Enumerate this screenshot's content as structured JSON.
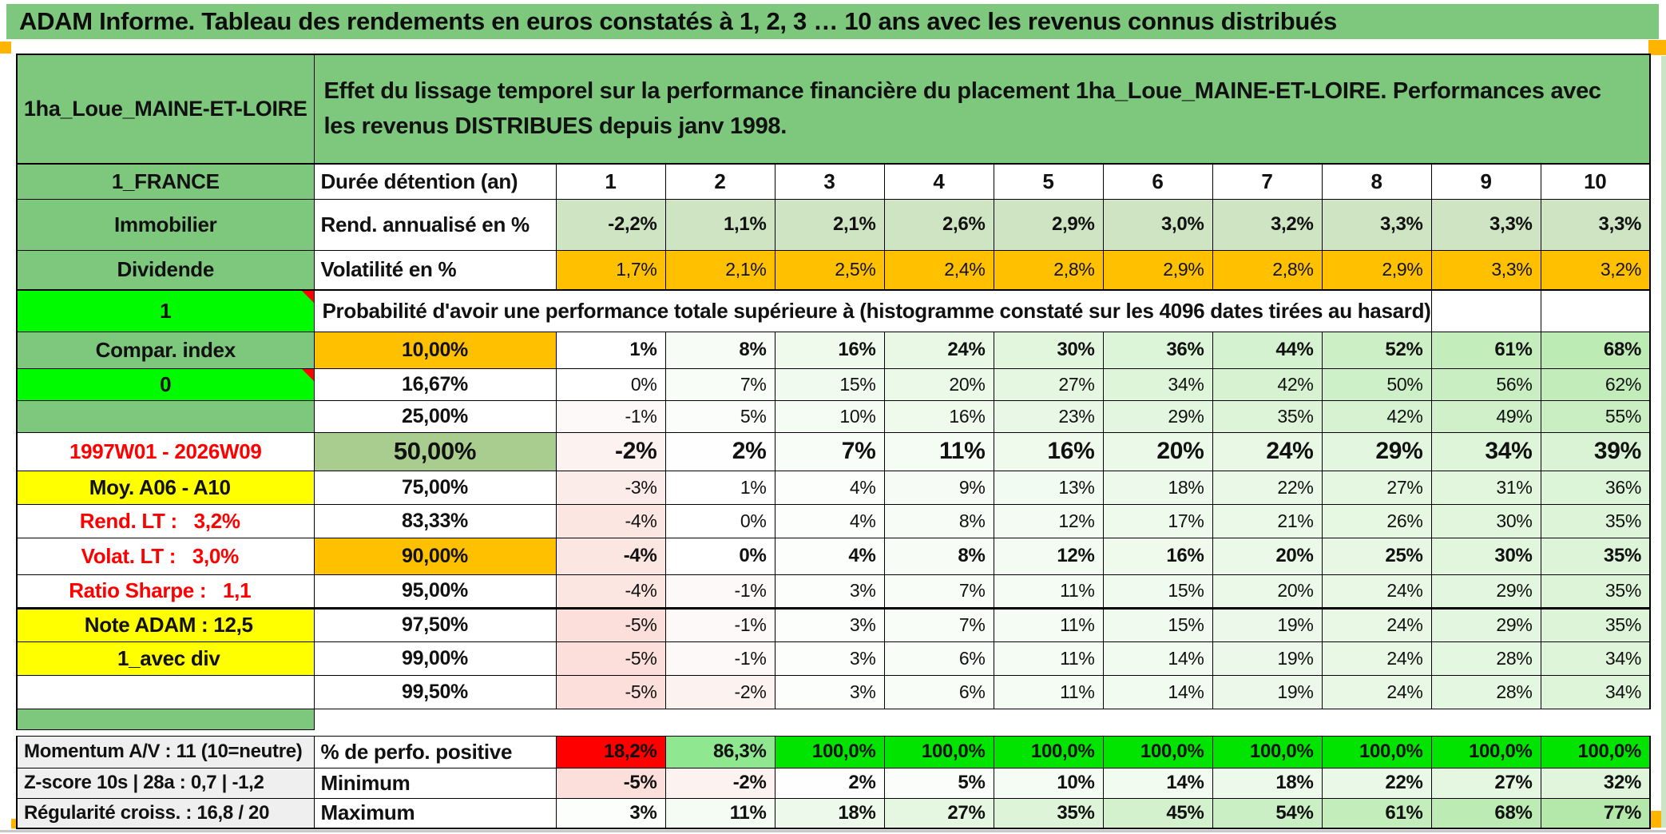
{
  "banner": {
    "text": "ADAM Informe. Tableau des rendements en euros constatés à 1, 2, 3 … 10 ans avec les revenus connus distribués"
  },
  "header": {
    "placement": "1ha_Loue_MAINE-ET-LOIRE",
    "description": "Effet du lissage temporel sur la performance financière du placement 1ha_Loue_MAINE-ET-LOIRE. Performances avec les revenus DISTRIBUES depuis janv 1998."
  },
  "columns": [
    "1",
    "2",
    "3",
    "4",
    "5",
    "6",
    "7",
    "8",
    "9",
    "10"
  ],
  "top_rows": {
    "duree": {
      "a": "1_FRANCE",
      "b": "Durée détention (an)"
    },
    "rend": {
      "a": "Immobilier",
      "b": "Rend. annualisé en %",
      "values": [
        "-2,2%",
        "1,1%",
        "2,1%",
        "2,6%",
        "2,9%",
        "3,0%",
        "3,2%",
        "3,3%",
        "3,3%",
        "3,3%"
      ]
    },
    "volat": {
      "a": "Dividende",
      "b": "Volatilité en %",
      "values": [
        "1,7%",
        "2,1%",
        "2,5%",
        "2,4%",
        "2,8%",
        "2,9%",
        "2,8%",
        "2,9%",
        "3,3%",
        "3,2%"
      ]
    }
  },
  "probability_row": {
    "a": "1",
    "text": "Probabilité d'avoir une performance totale supérieure à (histogramme constaté sur les 4096 dates tirées au hasard)"
  },
  "histogram_rows": [
    {
      "a": "Compar. index",
      "a_cls": "bg-hgreen",
      "b": "10,00%",
      "b_cls": "bg-orange",
      "em": "b",
      "values": [
        "1%",
        "8%",
        "16%",
        "24%",
        "30%",
        "36%",
        "44%",
        "52%",
        "61%",
        "68%"
      ]
    },
    {
      "a": "0",
      "a_cls": "bg-bright flag",
      "b": "16,67%",
      "b_cls": "",
      "em": "n",
      "values": [
        "0%",
        "7%",
        "15%",
        "20%",
        "27%",
        "34%",
        "42%",
        "50%",
        "56%",
        "62%"
      ]
    },
    {
      "a": "",
      "a_cls": "bg-hgreen",
      "b": "25,00%",
      "b_cls": "",
      "em": "n",
      "values": [
        "-1%",
        "5%",
        "10%",
        "16%",
        "23%",
        "29%",
        "35%",
        "42%",
        "49%",
        "55%"
      ]
    },
    {
      "a": "1997W01 - 2026W09",
      "a_cls": "red",
      "b": "50,00%",
      "b_cls": "bg-sage",
      "em": "big",
      "values": [
        "-2%",
        "2%",
        "7%",
        "11%",
        "16%",
        "20%",
        "24%",
        "29%",
        "34%",
        "39%"
      ]
    },
    {
      "a": "Moy. A06 - A10",
      "a_cls": "bg-yellow right",
      "b": "75,00%",
      "b_cls": "",
      "em": "n",
      "values": [
        "-3%",
        "1%",
        "4%",
        "9%",
        "13%",
        "18%",
        "22%",
        "27%",
        "31%",
        "36%"
      ]
    },
    {
      "a": "Rend. LT :   3,2%",
      "a_cls": "red right pre",
      "b": "83,33%",
      "b_cls": "",
      "em": "n",
      "values": [
        "-4%",
        "0%",
        "4%",
        "8%",
        "12%",
        "17%",
        "21%",
        "26%",
        "30%",
        "35%"
      ]
    },
    {
      "a": "Volat. LT :   3,0%",
      "a_cls": "red right pre",
      "b": "90,00%",
      "b_cls": "bg-orange",
      "em": "b",
      "values": [
        "-4%",
        "0%",
        "4%",
        "8%",
        "12%",
        "16%",
        "20%",
        "25%",
        "30%",
        "35%"
      ]
    },
    {
      "a": "Ratio Sharpe :   1,1",
      "a_cls": "red right pre",
      "b": "95,00%",
      "b_cls": "",
      "em": "n",
      "thick": true,
      "values": [
        "-4%",
        "-1%",
        "3%",
        "7%",
        "11%",
        "15%",
        "20%",
        "24%",
        "29%",
        "35%"
      ]
    },
    {
      "a": "Note ADAM : 12,5",
      "a_cls": "bg-yellow left",
      "b": "97,50%",
      "b_cls": "",
      "em": "n",
      "values": [
        "-5%",
        "-1%",
        "3%",
        "7%",
        "11%",
        "15%",
        "19%",
        "24%",
        "29%",
        "35%"
      ]
    },
    {
      "a": "1_avec div",
      "a_cls": "bg-yellow left",
      "b": "99,00%",
      "b_cls": "",
      "em": "n",
      "values": [
        "-5%",
        "-1%",
        "3%",
        "6%",
        "11%",
        "14%",
        "19%",
        "24%",
        "28%",
        "34%"
      ]
    },
    {
      "a": "",
      "a_cls": "",
      "b": "99,50%",
      "b_cls": "",
      "em": "n",
      "values": [
        "-5%",
        "-2%",
        "3%",
        "6%",
        "11%",
        "14%",
        "19%",
        "24%",
        "28%",
        "34%"
      ]
    }
  ],
  "bottom_rows": [
    {
      "a": "Momentum A/V : 11 (10=neutre)",
      "b": "% de perfo. positive",
      "em": "b",
      "values": [
        "18,2%",
        "86,3%",
        "100,0%",
        "100,0%",
        "100,0%",
        "100,0%",
        "100,0%",
        "100,0%",
        "100,0%",
        "100,0%"
      ],
      "cell_colors": [
        "perfo_red",
        "perfo_mid",
        "perfo_bright",
        "perfo_bright",
        "perfo_bright",
        "perfo_bright",
        "perfo_bright",
        "perfo_bright",
        "perfo_bright",
        "perfo_bright"
      ]
    },
    {
      "a": "Z-score 10s | 28a : 0,7 | -1,2",
      "b": "Minimum",
      "em": "b",
      "values": [
        "-5%",
        "-2%",
        "2%",
        "5%",
        "10%",
        "14%",
        "18%",
        "22%",
        "27%",
        "32%"
      ]
    },
    {
      "a": "Régularité croiss. : 16,8 / 20",
      "b": "Maximum",
      "em": "b",
      "values": [
        "3%",
        "11%",
        "18%",
        "27%",
        "35%",
        "45%",
        "54%",
        "61%",
        "68%",
        "77%"
      ]
    }
  ],
  "colors": {
    "banner_green": "#7EC87E",
    "light_green_fill": "#CFE4C2",
    "orange_fill": "#FFC000",
    "bright_green_fill": "#00FB00",
    "sage_fill": "#A9CD8E",
    "yellow_fill": "#FFFF00",
    "gray_fill": "#EFEFEF",
    "red_text": "#FE0000",
    "perfo_red": "#FE0000",
    "perfo_mid": "#8FE88F",
    "perfo_bright": "#00E400",
    "page_break_orange": "#F7A600",
    "right_strip_green": "#CBE4C6"
  }
}
